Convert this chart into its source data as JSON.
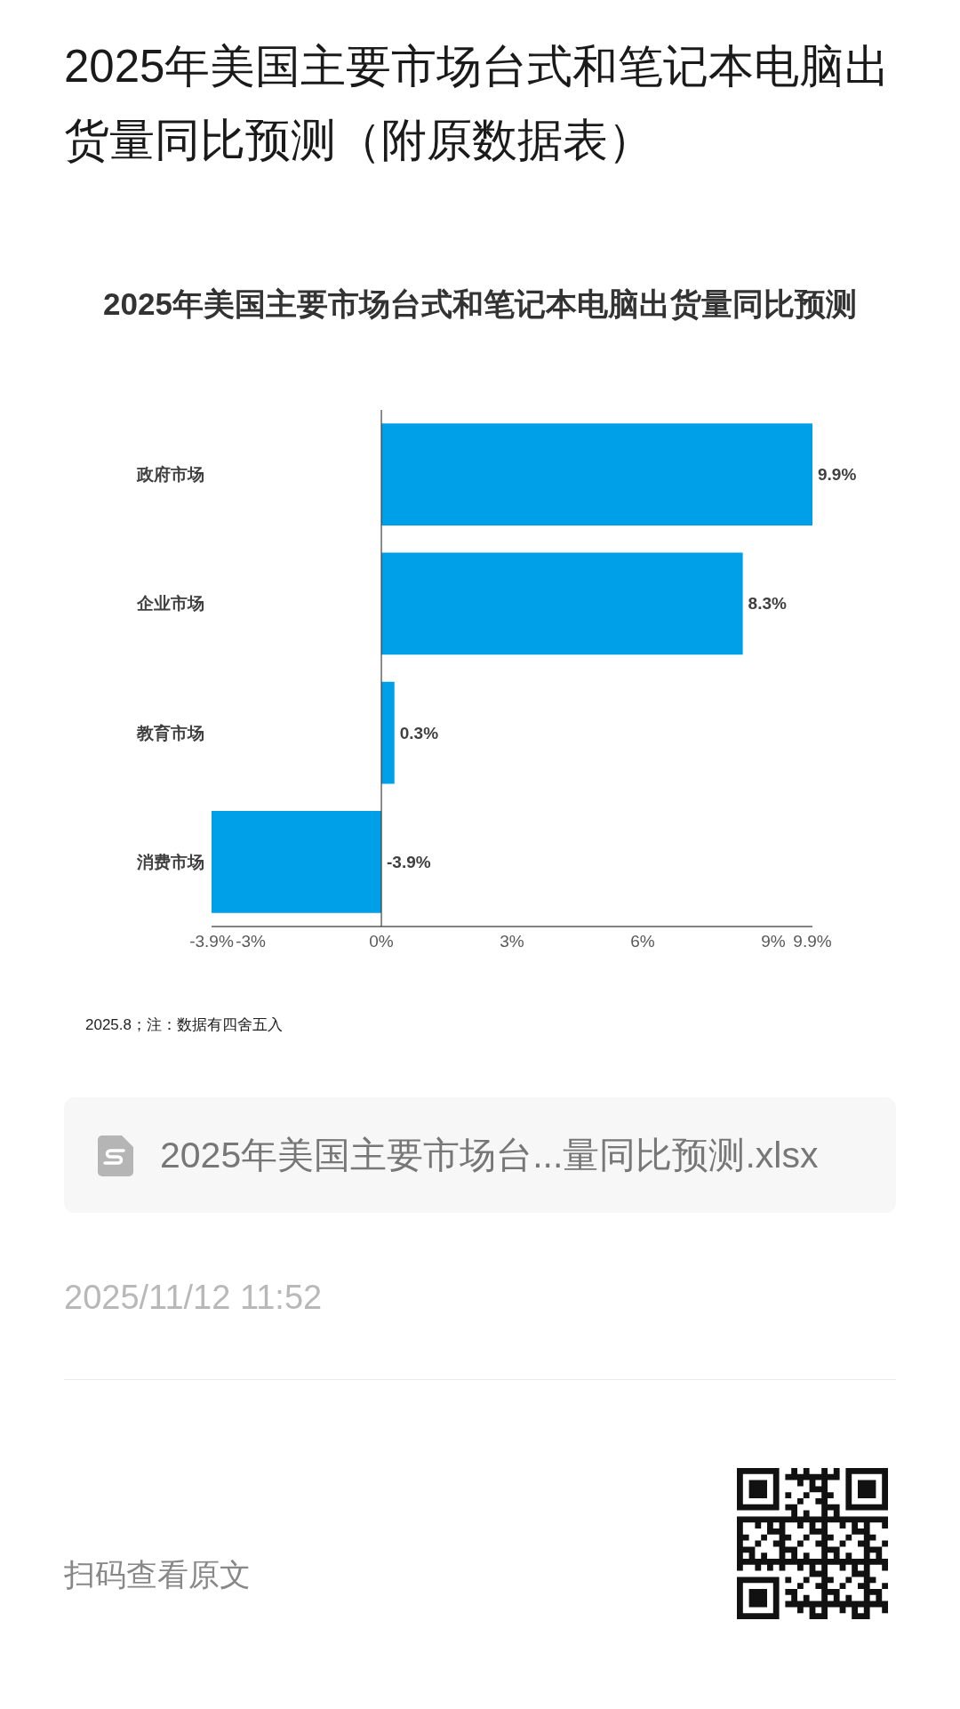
{
  "chart_data": {
    "type": "bar",
    "orientation": "horizontal",
    "title": "2025年美国主要市场台式和笔记本电脑出货量同比预测（附原数据表）",
    "subtitle": "2025年美国主要市场台式和笔记本电脑出货量同比预测",
    "categories": [
      "政府市场",
      "企业市场",
      "教育市场",
      "消费市场"
    ],
    "values": [
      9.9,
      8.3,
      0.3,
      -3.9
    ],
    "color": "#00a0e9",
    "value_labels": [
      "9.9%",
      "8.3%",
      "0.3%",
      "-3.9%"
    ],
    "xlim": [
      -3.9,
      9.9
    ],
    "xticks": [
      {
        "value": -3.9,
        "label": "-3.9%"
      },
      {
        "value": -3,
        "label": "-3%"
      },
      {
        "value": 0,
        "label": "0%"
      },
      {
        "value": 3,
        "label": "3%"
      },
      {
        "value": 6,
        "label": "6%"
      },
      {
        "value": 9,
        "label": "9%"
      },
      {
        "value": 9.9,
        "label": "9.9%"
      }
    ],
    "annotations": [
      "2025.8；注：数据有四舍五入",
      "2025年美国主要市场台...量同比预测.xlsx",
      "2025/11/12 11:52",
      "扫码查看原文"
    ]
  }
}
